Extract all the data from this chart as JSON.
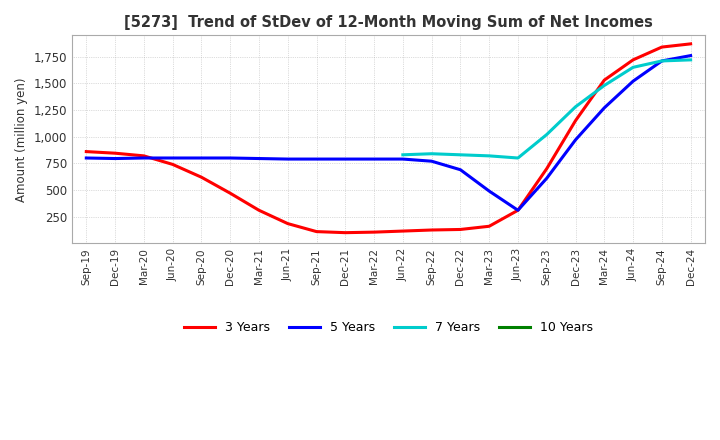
{
  "title": "[5273]  Trend of StDev of 12-Month Moving Sum of Net Incomes",
  "ylabel": "Amount (million yen)",
  "ylim": [
    0,
    1950
  ],
  "yticks": [
    250,
    500,
    750,
    1000,
    1250,
    1500,
    1750
  ],
  "legend": [
    "3 Years",
    "5 Years",
    "7 Years",
    "10 Years"
  ],
  "legend_colors": [
    "#ff0000",
    "#0000ff",
    "#00cccc",
    "#008000"
  ],
  "background_color": "#ffffff",
  "x_labels": [
    "Sep-19",
    "Dec-19",
    "Mar-20",
    "Jun-20",
    "Sep-20",
    "Dec-20",
    "Mar-21",
    "Jun-21",
    "Sep-21",
    "Dec-21",
    "Mar-22",
    "Jun-22",
    "Sep-22",
    "Dec-22",
    "Mar-23",
    "Jun-23",
    "Sep-23",
    "Dec-23",
    "Mar-24",
    "Jun-24",
    "Sep-24",
    "Dec-24"
  ],
  "series_3y": [
    860,
    845,
    820,
    740,
    620,
    470,
    310,
    185,
    110,
    100,
    105,
    115,
    125,
    130,
    160,
    310,
    700,
    1150,
    1530,
    1720,
    1840,
    1870
  ],
  "series_5y": [
    800,
    795,
    800,
    800,
    800,
    800,
    795,
    790,
    790,
    790,
    790,
    790,
    770,
    690,
    490,
    310,
    610,
    970,
    1270,
    1520,
    1710,
    1760
  ],
  "series_7y": [
    null,
    null,
    null,
    null,
    null,
    null,
    null,
    null,
    null,
    null,
    null,
    830,
    840,
    830,
    820,
    800,
    1020,
    1280,
    1480,
    1650,
    1710,
    1720
  ],
  "series_10y": [
    null,
    null,
    null,
    null,
    null,
    null,
    null,
    null,
    null,
    null,
    null,
    null,
    null,
    null,
    null,
    null,
    null,
    null,
    null,
    null,
    null,
    null
  ]
}
